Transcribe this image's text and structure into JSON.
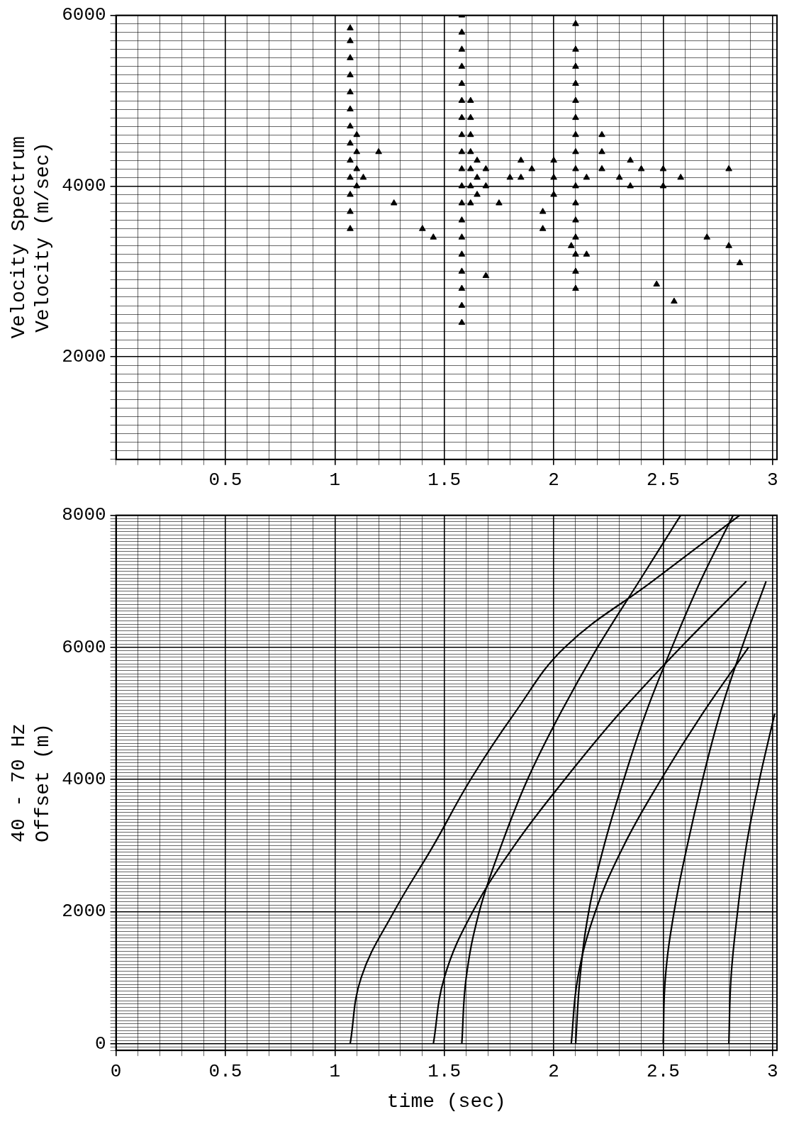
{
  "chart_data": [
    {
      "type": "scatter",
      "ylabel": [
        "Velocity Spectrum",
        "Velocity (m/sec)"
      ],
      "xlim": [
        0,
        3.02
      ],
      "xticks": [
        0.5,
        1,
        1.5,
        2,
        2.5,
        3
      ],
      "ylim": [
        800,
        6000
      ],
      "yticks": [
        2000,
        4000,
        6000
      ],
      "grid": true,
      "series": [
        {
          "color": "#000000",
          "marker": "triangle",
          "x": [
            1.07,
            1.07,
            1.07,
            1.07,
            1.07,
            1.07,
            1.07,
            1.07,
            1.07,
            1.07,
            1.07,
            1.07,
            1.07,
            1.1,
            1.1,
            1.1,
            1.1,
            1.13,
            1.2,
            1.27,
            1.4,
            1.45,
            1.58,
            1.58,
            1.58,
            1.58,
            1.58,
            1.58,
            1.58,
            1.58,
            1.58,
            1.58,
            1.58,
            1.58,
            1.58,
            1.58,
            1.58,
            1.58,
            1.58,
            1.58,
            1.58,
            1.62,
            1.62,
            1.62,
            1.62,
            1.62,
            1.62,
            1.62,
            1.65,
            1.65,
            1.65,
            1.69,
            1.69,
            1.69,
            1.75,
            1.8,
            1.85,
            1.85,
            1.9,
            1.95,
            1.95,
            2.0,
            2.0,
            2.0,
            2.08,
            2.1,
            2.1,
            2.1,
            2.1,
            2.1,
            2.1,
            2.1,
            2.1,
            2.1,
            2.1,
            2.1,
            2.1,
            2.1,
            2.1,
            2.1,
            2.1,
            2.15,
            2.15,
            2.22,
            2.22,
            2.22,
            2.3,
            2.35,
            2.35,
            2.4,
            2.47,
            2.5,
            2.5,
            2.55,
            2.58,
            2.7,
            2.8,
            2.8,
            2.85
          ],
          "values": [
            3500,
            3700,
            3900,
            4100,
            4300,
            4500,
            4700,
            4900,
            5100,
            5300,
            5500,
            5700,
            5850,
            4000,
            4200,
            4400,
            4600,
            4100,
            4400,
            3800,
            3500,
            3400,
            2400,
            2600,
            2800,
            3000,
            3200,
            3400,
            3600,
            3800,
            4000,
            4200,
            4400,
            4600,
            4800,
            5000,
            5200,
            5400,
            5600,
            5800,
            6000,
            3800,
            4000,
            4200,
            4400,
            4600,
            4800,
            5000,
            3900,
            4100,
            4300,
            2950,
            4000,
            4200,
            3800,
            4100,
            4100,
            4300,
            4200,
            3500,
            3700,
            3900,
            4100,
            4300,
            3300,
            2800,
            3000,
            3200,
            3400,
            3600,
            3800,
            4000,
            4200,
            4400,
            4600,
            4800,
            5000,
            5200,
            5400,
            5600,
            5900,
            3200,
            4100,
            4200,
            4400,
            4600,
            4100,
            4000,
            4300,
            4200,
            2850,
            4000,
            4200,
            2650,
            4100,
            3400,
            3300,
            4200,
            3100
          ]
        }
      ]
    },
    {
      "type": "line",
      "ylabel": [
        "40 - 70 Hz",
        "Offset (m)"
      ],
      "xlabel": "time (sec)",
      "xlim": [
        0,
        3.02
      ],
      "xticks": [
        0,
        0.5,
        1,
        1.5,
        2,
        2.5,
        3
      ],
      "ylim": [
        -100,
        8000
      ],
      "yticks": [
        0,
        2000,
        4000,
        6000,
        8000
      ],
      "grid": true,
      "series": [
        {
          "color": "#000000",
          "x": [
            1.07,
            1.12,
            1.27,
            1.45,
            1.62,
            1.82,
            2.05,
            2.45,
            2.85
          ],
          "values": [
            0,
            1000,
            2000,
            3000,
            4000,
            5000,
            6000,
            7000,
            8000
          ]
        },
        {
          "color": "#000000",
          "x": [
            1.45,
            1.5,
            1.63,
            1.82,
            2.05,
            2.3,
            2.58,
            2.88
          ],
          "values": [
            0,
            1000,
            2000,
            3000,
            4000,
            5000,
            6000,
            7000
          ]
        },
        {
          "color": "#000000",
          "x": [
            1.58,
            1.6,
            1.66,
            1.76,
            1.88,
            2.03,
            2.2,
            2.39,
            2.58
          ],
          "values": [
            0,
            1000,
            2000,
            3000,
            4000,
            5000,
            6000,
            7000,
            8000
          ]
        },
        {
          "color": "#000000",
          "x": [
            2.08,
            2.11,
            2.19,
            2.32,
            2.49,
            2.68,
            2.89
          ],
          "values": [
            0,
            1000,
            2000,
            3000,
            4000,
            5000,
            6000
          ]
        },
        {
          "color": "#000000",
          "x": [
            2.1,
            2.12,
            2.16,
            2.23,
            2.32,
            2.42,
            2.54,
            2.67,
            2.82
          ],
          "values": [
            0,
            1000,
            2000,
            3000,
            4000,
            5000,
            6000,
            7000,
            8000
          ]
        },
        {
          "color": "#000000",
          "x": [
            2.5,
            2.51,
            2.55,
            2.61,
            2.68,
            2.76,
            2.86,
            2.97
          ],
          "values": [
            0,
            1000,
            2000,
            3000,
            4000,
            5000,
            6000,
            7000
          ]
        },
        {
          "color": "#000000",
          "x": [
            2.8,
            2.81,
            2.84,
            2.88,
            2.94,
            3.01
          ],
          "values": [
            0,
            1000,
            2000,
            3000,
            4000,
            5000
          ]
        }
      ]
    }
  ]
}
